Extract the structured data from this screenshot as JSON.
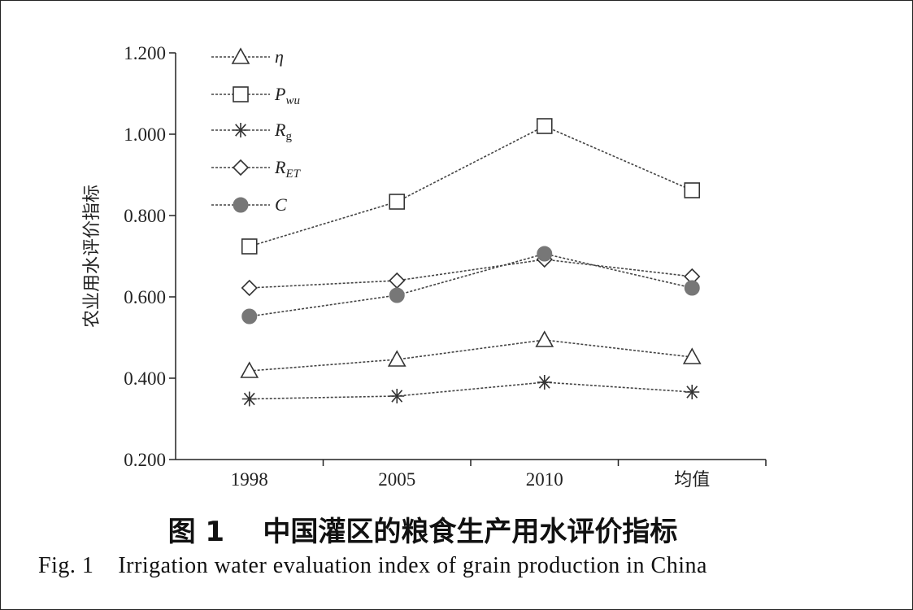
{
  "caption": {
    "cn": "图 1    中国灌区的粮食生产用水评价指标",
    "en": "Fig. 1    Irrigation water evaluation index of grain production in China"
  },
  "chart_data": {
    "type": "line",
    "title": "",
    "xlabel": "",
    "ylabel": "农业用水评价指标",
    "categories": [
      "1998",
      "2005",
      "2010",
      "均值"
    ],
    "ylim": [
      0.2,
      1.2
    ],
    "yticks": [
      "0.200",
      "0.400",
      "0.600",
      "0.800",
      "1.000",
      "1.200"
    ],
    "grid": false,
    "legend_position": "top-left",
    "series": [
      {
        "name": "η",
        "marker": "triangle-open",
        "color": "#333333",
        "values": [
          0.418,
          0.446,
          0.494,
          0.452
        ]
      },
      {
        "name": "Pwu",
        "marker": "square-open",
        "color": "#333333",
        "values": [
          0.724,
          0.834,
          1.02,
          0.862
        ]
      },
      {
        "name": "Rg",
        "marker": "asterisk",
        "color": "#333333",
        "values": [
          0.349,
          0.356,
          0.39,
          0.366
        ]
      },
      {
        "name": "RET",
        "marker": "diamond-open",
        "color": "#333333",
        "values": [
          0.622,
          0.64,
          0.692,
          0.65
        ]
      },
      {
        "name": "C",
        "marker": "circle-filled",
        "color": "#777777",
        "values": [
          0.552,
          0.604,
          0.706,
          0.622
        ]
      }
    ]
  }
}
